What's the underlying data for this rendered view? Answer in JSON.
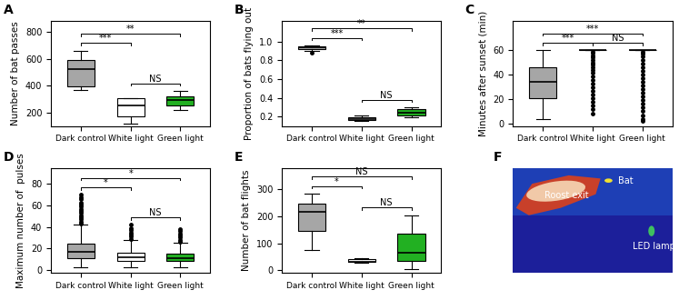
{
  "chart_data": [
    {
      "type": "box",
      "title": "A",
      "y_label": "Number of bat passes",
      "categories": [
        "Dark control",
        "White light",
        "Green light"
      ],
      "colors": [
        "#a6a6a6",
        "#ffffff",
        "#22b022"
      ],
      "ylim": [
        100,
        880
      ],
      "yticks": [
        200,
        400,
        600,
        800
      ],
      "boxes": [
        {
          "whislo": 370,
          "q1": 395,
          "med": 520,
          "q3": 590,
          "whishi": 660,
          "fliers": []
        },
        {
          "whislo": 120,
          "q1": 170,
          "med": 250,
          "q3": 310,
          "whishi": 310,
          "fliers": []
        },
        {
          "whislo": 220,
          "q1": 255,
          "med": 295,
          "q3": 320,
          "whishi": 360,
          "fliers": []
        }
      ],
      "comparisons": [
        {
          "pair": [
            0,
            1
          ],
          "label": "***"
        },
        {
          "pair": [
            1,
            2
          ],
          "label": "NS"
        },
        {
          "pair": [
            0,
            2
          ],
          "label": "**"
        }
      ]
    },
    {
      "type": "box",
      "title": "B",
      "y_label": "Proportion of bats flying out",
      "categories": [
        "Dark control",
        "White light",
        "Green light"
      ],
      "colors": [
        "#a6a6a6",
        "#ffffff",
        "#22b022"
      ],
      "ylim": [
        0.1,
        1.22
      ],
      "yticks": [
        0.2,
        0.4,
        0.6,
        0.8,
        1.0
      ],
      "boxes": [
        {
          "whislo": 0.9,
          "q1": 0.92,
          "med": 0.94,
          "q3": 0.95,
          "whishi": 0.96,
          "fliers": [
            0.88
          ]
        },
        {
          "whislo": 0.15,
          "q1": 0.16,
          "med": 0.175,
          "q3": 0.19,
          "whishi": 0.21,
          "fliers": []
        },
        {
          "whislo": 0.19,
          "q1": 0.21,
          "med": 0.24,
          "q3": 0.28,
          "whishi": 0.3,
          "fliers": []
        }
      ],
      "comparisons": [
        {
          "pair": [
            0,
            1
          ],
          "label": "***"
        },
        {
          "pair": [
            1,
            2
          ],
          "label": "NS"
        },
        {
          "pair": [
            0,
            2
          ],
          "label": "**"
        }
      ]
    },
    {
      "type": "box",
      "title": "C",
      "y_label": "Minutes after sunset (min)",
      "categories": [
        "Dark control",
        "White light",
        "Green light"
      ],
      "colors": [
        "#a6a6a6",
        "#ffffff",
        "#22b022"
      ],
      "ylim": [
        -2,
        84
      ],
      "yticks": [
        0,
        20,
        40,
        60
      ],
      "boxes": [
        {
          "whislo": 4,
          "q1": 21,
          "med": 34,
          "q3": 46,
          "whishi": 60,
          "fliers": []
        },
        {
          "whislo": 60,
          "q1": 60,
          "med": 60,
          "q3": 60,
          "whishi": 60,
          "fliers": [
            8,
            12,
            15,
            18,
            21,
            24,
            27,
            30,
            33,
            36,
            39,
            42,
            44,
            46,
            48,
            50,
            52,
            54,
            56,
            58,
            59
          ]
        },
        {
          "whislo": 60,
          "q1": 60,
          "med": 60,
          "q3": 60,
          "whishi": 60,
          "fliers": [
            2,
            4,
            7,
            10,
            13,
            16,
            19,
            22,
            25,
            28,
            31,
            34,
            37,
            40,
            43,
            46,
            49,
            52,
            55,
            57,
            59
          ]
        }
      ],
      "comparisons": [
        {
          "pair": [
            0,
            1
          ],
          "label": "***"
        },
        {
          "pair": [
            1,
            2
          ],
          "label": "NS"
        },
        {
          "pair": [
            0,
            2
          ],
          "label": "***"
        }
      ]
    },
    {
      "type": "box",
      "title": "D",
      "y_label": "Maximum number of  pulses",
      "categories": [
        "Dark control",
        "White light",
        "Green light"
      ],
      "colors": [
        "#a6a6a6",
        "#ffffff",
        "#22b022"
      ],
      "ylim": [
        -3,
        95
      ],
      "yticks": [
        0,
        20,
        40,
        60,
        80
      ],
      "boxes": [
        {
          "whislo": 2,
          "q1": 11,
          "med": 17,
          "q3": 24,
          "whishi": 42,
          "fliers": [
            43,
            45,
            47,
            49,
            51,
            53,
            55,
            57,
            59,
            61,
            63,
            66,
            68,
            70
          ]
        },
        {
          "whislo": 2,
          "q1": 8,
          "med": 12,
          "q3": 16,
          "whishi": 28,
          "fliers": [
            29,
            31,
            33,
            35,
            37,
            39,
            42
          ]
        },
        {
          "whislo": 2,
          "q1": 8,
          "med": 11,
          "q3": 15,
          "whishi": 25,
          "fliers": [
            26,
            28,
            30,
            32,
            34,
            36,
            38
          ]
        }
      ],
      "comparisons": [
        {
          "pair": [
            0,
            1
          ],
          "label": "*"
        },
        {
          "pair": [
            1,
            2
          ],
          "label": "NS"
        },
        {
          "pair": [
            0,
            2
          ],
          "label": "*"
        }
      ]
    },
    {
      "type": "box",
      "title": "E",
      "y_label": "Number of bat flights",
      "categories": [
        "Dark control",
        "White light",
        "Green light"
      ],
      "colors": [
        "#a6a6a6",
        "#ffffff",
        "#22b022"
      ],
      "ylim": [
        -10,
        380
      ],
      "yticks": [
        0,
        100,
        200,
        300
      ],
      "boxes": [
        {
          "whislo": 75,
          "q1": 145,
          "med": 218,
          "q3": 248,
          "whishi": 285,
          "fliers": []
        },
        {
          "whislo": 28,
          "q1": 30,
          "med": 33,
          "q3": 40,
          "whishi": 45,
          "fliers": []
        },
        {
          "whislo": 5,
          "q1": 35,
          "med": 65,
          "q3": 135,
          "whishi": 205,
          "fliers": []
        }
      ],
      "comparisons": [
        {
          "pair": [
            0,
            1
          ],
          "label": "*"
        },
        {
          "pair": [
            1,
            2
          ],
          "label": "NS"
        },
        {
          "pair": [
            0,
            2
          ],
          "label": "NS"
        }
      ]
    }
  ],
  "image": {
    "title": "F",
    "labels": {
      "bat": "Bat",
      "roost": "Roost exit",
      "lamp": "LED lamp"
    }
  }
}
